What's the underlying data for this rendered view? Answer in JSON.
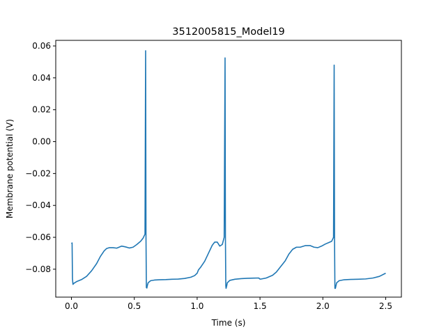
{
  "chart_data": {
    "type": "line",
    "title": "3512005815_Model19",
    "xlabel": "Time (s)",
    "ylabel": "Membrane potential (V)",
    "xlim": [
      -0.125,
      2.625
    ],
    "ylim": [
      -0.0975,
      0.0635
    ],
    "xticks": [
      0.0,
      0.5,
      1.0,
      1.5,
      2.0,
      2.5
    ],
    "xtick_labels": [
      "0.0",
      "0.5",
      "1.0",
      "1.5",
      "2.0",
      "2.5"
    ],
    "yticks": [
      0.06,
      0.04,
      0.02,
      0.0,
      -0.02,
      -0.04,
      -0.06,
      -0.08
    ],
    "ytick_labels": [
      "0.06",
      "0.04",
      "0.02",
      "0.00",
      "−0.02",
      "−0.04",
      "−0.06",
      "−0.08"
    ],
    "grid": false,
    "color": "#1f77b4",
    "series": [
      {
        "x": [
          0.0,
          0.005,
          0.008,
          0.012,
          0.02,
          0.04,
          0.08,
          0.12,
          0.16,
          0.2,
          0.23,
          0.26,
          0.28,
          0.3,
          0.33,
          0.36,
          0.4,
          0.43,
          0.46,
          0.49,
          0.52,
          0.55,
          0.57,
          0.585,
          0.59,
          0.593,
          0.596,
          0.6,
          0.603,
          0.61,
          0.63,
          0.66,
          0.7,
          0.75,
          0.8,
          0.85,
          0.9,
          0.95,
          0.98,
          1.0,
          1.01,
          1.03,
          1.06,
          1.09,
          1.12,
          1.14,
          1.16,
          1.18,
          1.2,
          1.215,
          1.222,
          1.225,
          1.228,
          1.23,
          1.235,
          1.24,
          1.26,
          1.3,
          1.35,
          1.4,
          1.45,
          1.49,
          1.5,
          1.505,
          1.55,
          1.6,
          1.63,
          1.66,
          1.7,
          1.73,
          1.76,
          1.79,
          1.82,
          1.86,
          1.9,
          1.93,
          1.96,
          1.99,
          2.02,
          2.05,
          2.07,
          2.085,
          2.09,
          2.093,
          2.096,
          2.1,
          2.104,
          2.11,
          2.13,
          2.17,
          2.22,
          2.28,
          2.34,
          2.4,
          2.45,
          2.5
        ],
        "y": [
          -0.064,
          -0.0635,
          -0.086,
          -0.0895,
          -0.0888,
          -0.0878,
          -0.0865,
          -0.0845,
          -0.081,
          -0.0765,
          -0.072,
          -0.0685,
          -0.067,
          -0.0665,
          -0.0665,
          -0.0668,
          -0.0655,
          -0.066,
          -0.0667,
          -0.0662,
          -0.0645,
          -0.0625,
          -0.0605,
          -0.058,
          0.057,
          -0.06,
          -0.0915,
          -0.0918,
          -0.0905,
          -0.0885,
          -0.0872,
          -0.0868,
          -0.0866,
          -0.0865,
          -0.0863,
          -0.0862,
          -0.0858,
          -0.085,
          -0.084,
          -0.0825,
          -0.0805,
          -0.0785,
          -0.075,
          -0.07,
          -0.065,
          -0.063,
          -0.063,
          -0.0655,
          -0.0645,
          -0.06,
          0.0525,
          -0.06,
          -0.0905,
          -0.092,
          -0.0905,
          -0.0885,
          -0.087,
          -0.0863,
          -0.0859,
          -0.0857,
          -0.0856,
          -0.0855,
          -0.0862,
          -0.0862,
          -0.0855,
          -0.0838,
          -0.0818,
          -0.0788,
          -0.0748,
          -0.0705,
          -0.0675,
          -0.0662,
          -0.0662,
          -0.0652,
          -0.0652,
          -0.0662,
          -0.0665,
          -0.0655,
          -0.0642,
          -0.0632,
          -0.0625,
          -0.06,
          0.048,
          -0.06,
          -0.092,
          -0.092,
          -0.0905,
          -0.0885,
          -0.0872,
          -0.0866,
          -0.0864,
          -0.0863,
          -0.0861,
          -0.0855,
          -0.0845,
          -0.0825
        ]
      }
    ]
  }
}
